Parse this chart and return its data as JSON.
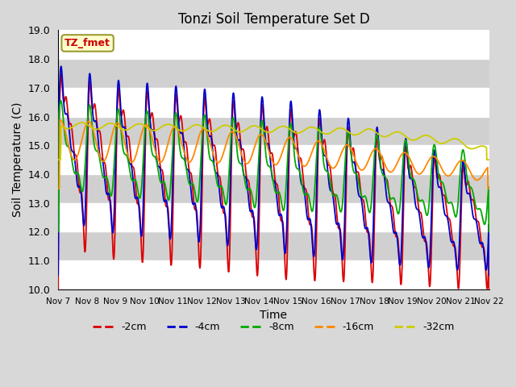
{
  "title": "Tonzi Soil Temperature Set D",
  "xlabel": "Time",
  "ylabel": "Soil Temperature (C)",
  "ylim": [
    10.0,
    19.0
  ],
  "yticks": [
    10.0,
    11.0,
    12.0,
    13.0,
    14.0,
    15.0,
    16.0,
    17.0,
    18.0,
    19.0
  ],
  "x_labels": [
    "Nov 7",
    "Nov 8",
    "Nov 9",
    "Nov 10",
    "Nov 11",
    "Nov 12",
    "Nov 13",
    "Nov 14",
    "Nov 15",
    "Nov 16",
    "Nov 17",
    "Nov 18",
    "Nov 19",
    "Nov 20",
    "Nov 21",
    "Nov 22"
  ],
  "legend_label": "TZ_fmet",
  "line_colors": {
    "-2cm": "#dd0000",
    "-4cm": "#0000cc",
    "-8cm": "#00aa00",
    "-16cm": "#ff8800",
    "-32cm": "#cccc00"
  },
  "plot_bg_color": "#d8d8d8",
  "stripe_color": "#c8c8c8",
  "n_points": 1500,
  "days": 15
}
